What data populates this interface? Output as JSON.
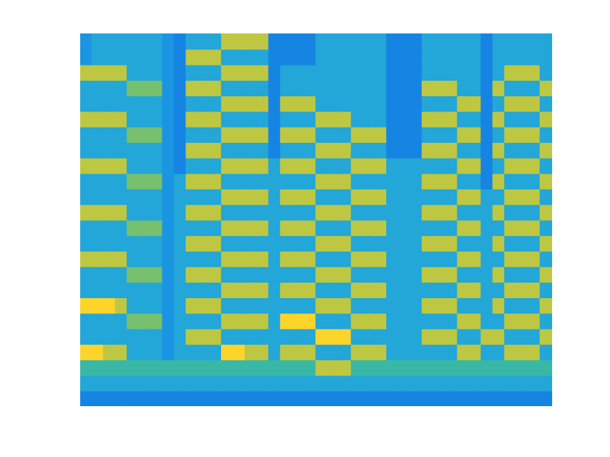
{
  "chart_data": {
    "type": "heatmap",
    "tick_labels": false,
    "grid": false,
    "cells": [
      [
        4,
        5,
        5,
        5,
        5,
        5,
        5,
        4,
        3,
        5,
        5,
        5,
        8,
        8,
        8,
        8,
        3,
        3,
        3,
        3,
        5,
        5,
        5,
        5,
        5,
        5,
        3,
        3,
        3,
        5,
        5,
        5,
        5,
        5,
        3,
        5,
        5,
        5,
        5,
        5
      ],
      [
        4,
        5,
        5,
        5,
        5,
        5,
        5,
        4,
        3,
        8,
        8,
        8,
        5,
        5,
        5,
        5,
        3,
        3,
        3,
        3,
        5,
        5,
        5,
        5,
        5,
        5,
        3,
        3,
        3,
        5,
        5,
        5,
        5,
        5,
        3,
        5,
        5,
        5,
        5,
        5
      ],
      [
        8,
        8,
        8,
        8,
        5,
        5,
        5,
        4,
        3,
        5,
        5,
        5,
        8,
        8,
        8,
        8,
        3,
        5,
        5,
        5,
        5,
        5,
        5,
        5,
        5,
        5,
        3,
        3,
        3,
        5,
        5,
        5,
        5,
        5,
        3,
        5,
        8,
        8,
        8,
        5
      ],
      [
        5,
        5,
        5,
        5,
        7,
        7,
        7,
        4,
        3,
        8,
        8,
        8,
        5,
        5,
        5,
        5,
        3,
        5,
        5,
        5,
        5,
        5,
        5,
        5,
        5,
        5,
        3,
        3,
        3,
        8,
        8,
        8,
        5,
        5,
        3,
        8,
        5,
        5,
        5,
        8
      ],
      [
        5,
        5,
        5,
        5,
        5,
        5,
        5,
        4,
        3,
        5,
        5,
        5,
        8,
        8,
        8,
        8,
        3,
        8,
        8,
        8,
        5,
        5,
        5,
        5,
        5,
        5,
        3,
        3,
        3,
        5,
        5,
        5,
        8,
        8,
        3,
        5,
        8,
        8,
        8,
        5
      ],
      [
        8,
        8,
        8,
        8,
        5,
        5,
        5,
        4,
        3,
        8,
        8,
        8,
        5,
        5,
        5,
        5,
        3,
        5,
        5,
        5,
        8,
        8,
        8,
        5,
        5,
        5,
        3,
        3,
        3,
        8,
        8,
        8,
        5,
        5,
        3,
        8,
        5,
        5,
        5,
        8
      ],
      [
        5,
        5,
        5,
        5,
        7,
        7,
        7,
        4,
        3,
        5,
        5,
        5,
        8,
        8,
        8,
        8,
        3,
        8,
        8,
        8,
        5,
        5,
        5,
        8,
        8,
        8,
        3,
        3,
        3,
        5,
        5,
        5,
        8,
        8,
        3,
        5,
        8,
        8,
        8,
        5
      ],
      [
        5,
        5,
        5,
        5,
        5,
        5,
        5,
        4,
        3,
        8,
        8,
        8,
        5,
        5,
        5,
        5,
        3,
        5,
        5,
        5,
        8,
        8,
        8,
        5,
        5,
        5,
        3,
        3,
        3,
        8,
        8,
        8,
        5,
        5,
        3,
        8,
        5,
        5,
        5,
        8
      ],
      [
        8,
        8,
        8,
        8,
        5,
        5,
        5,
        4,
        3,
        5,
        5,
        5,
        8,
        8,
        8,
        8,
        5,
        8,
        8,
        8,
        5,
        5,
        5,
        8,
        8,
        8,
        5,
        5,
        5,
        5,
        5,
        5,
        8,
        8,
        3,
        5,
        8,
        8,
        8,
        5
      ],
      [
        5,
        5,
        5,
        5,
        7,
        7,
        7,
        4,
        5,
        8,
        8,
        8,
        5,
        5,
        5,
        5,
        5,
        5,
        5,
        5,
        8,
        8,
        8,
        5,
        5,
        5,
        5,
        5,
        5,
        8,
        8,
        8,
        5,
        5,
        3,
        8,
        5,
        5,
        5,
        8
      ],
      [
        5,
        5,
        5,
        5,
        5,
        5,
        5,
        4,
        5,
        5,
        5,
        5,
        8,
        8,
        8,
        8,
        5,
        8,
        8,
        8,
        5,
        5,
        5,
        8,
        8,
        8,
        5,
        5,
        5,
        5,
        5,
        5,
        8,
        8,
        5,
        5,
        8,
        8,
        8,
        5
      ],
      [
        8,
        8,
        8,
        8,
        5,
        5,
        5,
        4,
        5,
        8,
        8,
        8,
        5,
        5,
        5,
        5,
        5,
        5,
        5,
        5,
        8,
        8,
        8,
        5,
        5,
        5,
        5,
        5,
        5,
        8,
        8,
        8,
        5,
        5,
        5,
        8,
        5,
        5,
        5,
        8
      ],
      [
        5,
        5,
        5,
        5,
        7,
        7,
        7,
        4,
        5,
        5,
        5,
        5,
        8,
        8,
        8,
        8,
        5,
        8,
        8,
        8,
        5,
        5,
        5,
        8,
        8,
        8,
        5,
        5,
        5,
        5,
        5,
        5,
        8,
        8,
        5,
        5,
        8,
        8,
        8,
        5
      ],
      [
        5,
        5,
        5,
        5,
        5,
        5,
        5,
        4,
        5,
        8,
        8,
        8,
        5,
        5,
        5,
        5,
        5,
        5,
        5,
        5,
        8,
        8,
        8,
        5,
        5,
        5,
        5,
        5,
        5,
        8,
        8,
        8,
        5,
        5,
        5,
        8,
        5,
        5,
        5,
        8
      ],
      [
        8,
        8,
        8,
        8,
        5,
        5,
        5,
        4,
        5,
        5,
        5,
        5,
        8,
        8,
        8,
        8,
        5,
        8,
        8,
        8,
        5,
        5,
        5,
        8,
        8,
        8,
        5,
        5,
        5,
        5,
        5,
        5,
        8,
        8,
        5,
        5,
        8,
        8,
        8,
        5
      ],
      [
        5,
        5,
        5,
        5,
        7,
        7,
        7,
        4,
        5,
        8,
        8,
        8,
        5,
        5,
        5,
        5,
        5,
        5,
        5,
        5,
        8,
        8,
        8,
        5,
        5,
        5,
        5,
        5,
        5,
        8,
        8,
        8,
        5,
        5,
        5,
        8,
        5,
        5,
        5,
        8
      ],
      [
        5,
        5,
        5,
        5,
        5,
        5,
        5,
        4,
        5,
        5,
        5,
        5,
        8,
        8,
        8,
        8,
        5,
        8,
        8,
        8,
        5,
        5,
        5,
        8,
        8,
        8,
        5,
        5,
        5,
        5,
        5,
        5,
        8,
        8,
        5,
        5,
        8,
        8,
        8,
        5
      ],
      [
        9,
        9,
        9,
        8,
        5,
        5,
        5,
        4,
        5,
        8,
        8,
        8,
        5,
        5,
        5,
        5,
        5,
        5,
        5,
        5,
        8,
        8,
        8,
        5,
        5,
        5,
        5,
        5,
        5,
        8,
        8,
        8,
        5,
        5,
        5,
        8,
        5,
        5,
        5,
        8
      ],
      [
        5,
        5,
        5,
        5,
        7,
        7,
        7,
        4,
        5,
        5,
        5,
        5,
        8,
        8,
        8,
        8,
        5,
        9,
        9,
        9,
        5,
        5,
        5,
        8,
        8,
        8,
        5,
        5,
        5,
        5,
        5,
        5,
        8,
        8,
        5,
        5,
        8,
        8,
        8,
        5
      ],
      [
        5,
        5,
        5,
        5,
        5,
        5,
        5,
        4,
        5,
        8,
        8,
        8,
        5,
        5,
        5,
        5,
        5,
        5,
        5,
        5,
        9,
        9,
        9,
        5,
        5,
        5,
        5,
        5,
        5,
        8,
        8,
        8,
        5,
        5,
        8,
        8,
        5,
        5,
        5,
        8
      ],
      [
        9,
        9,
        8,
        8,
        5,
        5,
        5,
        4,
        5,
        5,
        5,
        5,
        9,
        9,
        8,
        8,
        5,
        8,
        8,
        8,
        5,
        5,
        5,
        8,
        8,
        8,
        5,
        5,
        5,
        5,
        5,
        5,
        8,
        8,
        5,
        5,
        8,
        8,
        8,
        5
      ],
      [
        6,
        6,
        6,
        6,
        6,
        6,
        6,
        6,
        6,
        6,
        6,
        6,
        6,
        6,
        6,
        6,
        6,
        6,
        6,
        6,
        8,
        8,
        8,
        6,
        6,
        6,
        6,
        6,
        6,
        6,
        6,
        6,
        6,
        6,
        6,
        6,
        6,
        6,
        6,
        6
      ],
      [
        5,
        5,
        5,
        5,
        5,
        5,
        5,
        5,
        5,
        5,
        5,
        5,
        5,
        5,
        5,
        5,
        5,
        5,
        5,
        5,
        5,
        5,
        5,
        5,
        5,
        5,
        5,
        5,
        5,
        5,
        5,
        5,
        5,
        5,
        5,
        5,
        5,
        5,
        5,
        5
      ],
      [
        3,
        3,
        3,
        3,
        3,
        3,
        3,
        3,
        3,
        3,
        3,
        3,
        3,
        3,
        3,
        3,
        3,
        3,
        3,
        3,
        3,
        3,
        3,
        3,
        3,
        3,
        3,
        3,
        3,
        3,
        3,
        3,
        3,
        3,
        3,
        3,
        3,
        3,
        3,
        3
      ]
    ]
  }
}
